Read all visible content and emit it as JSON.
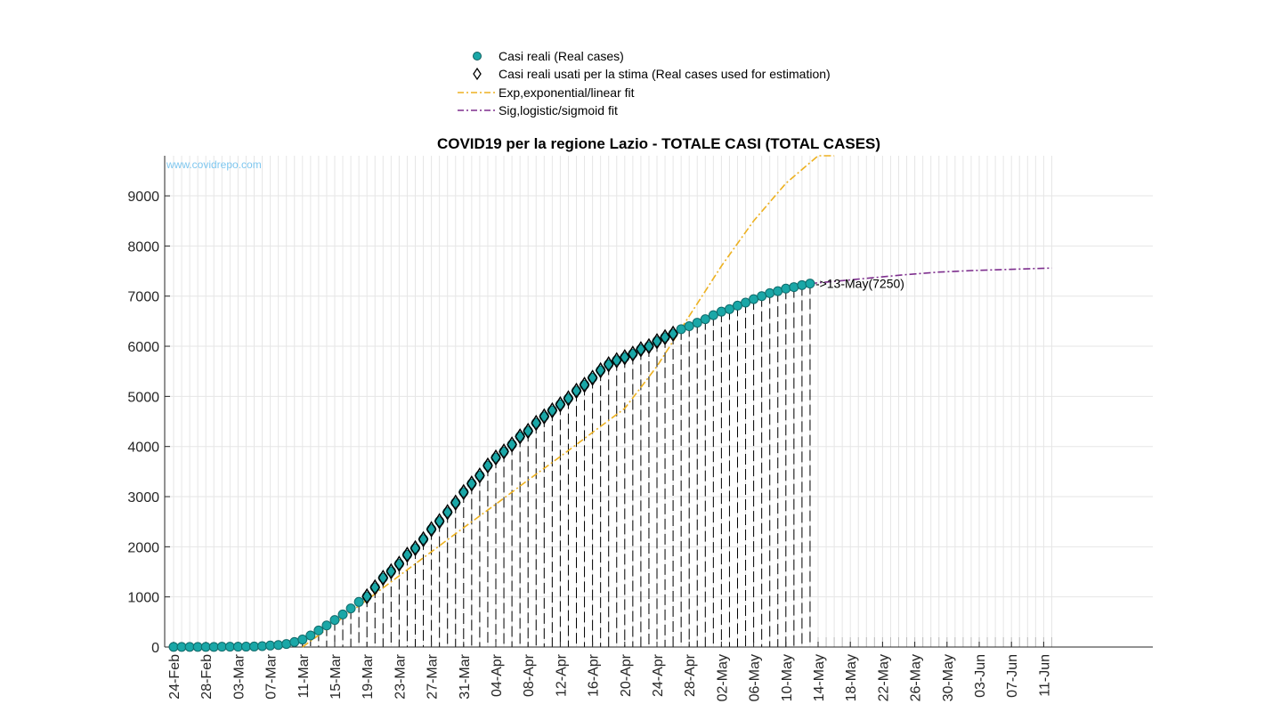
{
  "chart_data": {
    "type": "line",
    "title": "COVID19 per la regione Lazio - TOTALE CASI (TOTAL CASES)",
    "watermark": "www.covidrepo.com",
    "xlabel": "",
    "ylabel": "",
    "ylim": [
      0,
      9800
    ],
    "yticks": [
      0,
      1000,
      2000,
      3000,
      4000,
      5000,
      6000,
      7000,
      8000,
      9000
    ],
    "x_range": [
      "2020-02-24",
      "2020-06-12"
    ],
    "xtick_labels": [
      "24-Feb",
      "28-Feb",
      "03-Mar",
      "07-Mar",
      "11-Mar",
      "15-Mar",
      "19-Mar",
      "23-Mar",
      "27-Mar",
      "31-Mar",
      "04-Apr",
      "08-Apr",
      "12-Apr",
      "16-Apr",
      "20-Apr",
      "24-Apr",
      "28-Apr",
      "02-May",
      "06-May",
      "10-May",
      "14-May",
      "18-May",
      "22-May",
      "26-May",
      "30-May",
      "03-Jun",
      "07-Jun",
      "11-Jun"
    ],
    "grid": true,
    "legend_position": "top-center",
    "annotation": {
      "text": "->13-May(7250)",
      "x": "2020-05-13",
      "y": 7250
    },
    "colors": {
      "real": "#1aa7a7",
      "exp": "#edb120",
      "sig": "#7e2f8e"
    },
    "series": [
      {
        "name": "Casi reali (Real cases)",
        "marker": "circle",
        "x": [
          "2020-02-24",
          "2020-02-25",
          "2020-02-26",
          "2020-02-27",
          "2020-02-28",
          "2020-02-29",
          "2020-03-01",
          "2020-03-02",
          "2020-03-03",
          "2020-03-04",
          "2020-03-05",
          "2020-03-06",
          "2020-03-07",
          "2020-03-08",
          "2020-03-09",
          "2020-03-10",
          "2020-03-11",
          "2020-03-12",
          "2020-03-13",
          "2020-03-14",
          "2020-03-15",
          "2020-03-16",
          "2020-03-17",
          "2020-03-18",
          "2020-03-19",
          "2020-03-20",
          "2020-03-21",
          "2020-03-22",
          "2020-03-23",
          "2020-03-24",
          "2020-03-25",
          "2020-03-26",
          "2020-03-27",
          "2020-03-28",
          "2020-03-29",
          "2020-03-30",
          "2020-03-31",
          "2020-04-01",
          "2020-04-02",
          "2020-04-03",
          "2020-04-04",
          "2020-04-05",
          "2020-04-06",
          "2020-04-07",
          "2020-04-08",
          "2020-04-09",
          "2020-04-10",
          "2020-04-11",
          "2020-04-12",
          "2020-04-13",
          "2020-04-14",
          "2020-04-15",
          "2020-04-16",
          "2020-04-17",
          "2020-04-18",
          "2020-04-19",
          "2020-04-20",
          "2020-04-21",
          "2020-04-22",
          "2020-04-23",
          "2020-04-24",
          "2020-04-25",
          "2020-04-26",
          "2020-04-27",
          "2020-04-28",
          "2020-04-29",
          "2020-04-30",
          "2020-05-01",
          "2020-05-02",
          "2020-05-03",
          "2020-05-04",
          "2020-05-05",
          "2020-05-06",
          "2020-05-07",
          "2020-05-08",
          "2020-05-09",
          "2020-05-10",
          "2020-05-11",
          "2020-05-12",
          "2020-05-13"
        ],
        "values": [
          3,
          3,
          3,
          3,
          3,
          3,
          6,
          6,
          6,
          8,
          10,
          18,
          30,
          40,
          60,
          100,
          150,
          230,
          330,
          430,
          540,
          650,
          770,
          900,
          1010,
          1190,
          1380,
          1510,
          1660,
          1840,
          1970,
          2150,
          2350,
          2510,
          2690,
          2880,
          3090,
          3260,
          3420,
          3620,
          3780,
          3900,
          4040,
          4200,
          4310,
          4470,
          4600,
          4720,
          4840,
          4960,
          5110,
          5230,
          5370,
          5520,
          5640,
          5720,
          5780,
          5850,
          5940,
          6000,
          6100,
          6180,
          6250,
          6340,
          6400,
          6470,
          6540,
          6620,
          6690,
          6740,
          6810,
          6870,
          6940,
          7000,
          7060,
          7100,
          7150,
          7180,
          7220,
          7250
        ]
      },
      {
        "name": "Casi reali usati per la stima (Real cases used for estimation)",
        "marker": "diamond",
        "x_range": [
          "2020-03-19",
          "2020-04-26"
        ]
      },
      {
        "name": "Exp,exponential/linear fit",
        "line": "dash-dot",
        "x": [
          "2020-03-11",
          "2020-03-15",
          "2020-03-19",
          "2020-03-23",
          "2020-03-27",
          "2020-03-31",
          "2020-04-04",
          "2020-04-08",
          "2020-04-12",
          "2020-04-16",
          "2020-04-20",
          "2020-04-24",
          "2020-04-28",
          "2020-05-02",
          "2020-05-06",
          "2020-05-10",
          "2020-05-14",
          "2020-05-16"
        ],
        "values": [
          0,
          470,
          940,
          1420,
          1900,
          2380,
          2850,
          3330,
          3800,
          4280,
          4760,
          5600,
          6600,
          7600,
          8500,
          9250,
          9900,
          10300
        ]
      },
      {
        "name": "Sig,logistic/sigmoid fit",
        "line": "dash-dot",
        "x": [
          "2020-05-13",
          "2020-05-17",
          "2020-05-21",
          "2020-05-25",
          "2020-05-29",
          "2020-06-02",
          "2020-06-06",
          "2020-06-10",
          "2020-06-12"
        ],
        "values": [
          7250,
          7310,
          7370,
          7430,
          7480,
          7510,
          7530,
          7550,
          7560
        ]
      }
    ]
  }
}
